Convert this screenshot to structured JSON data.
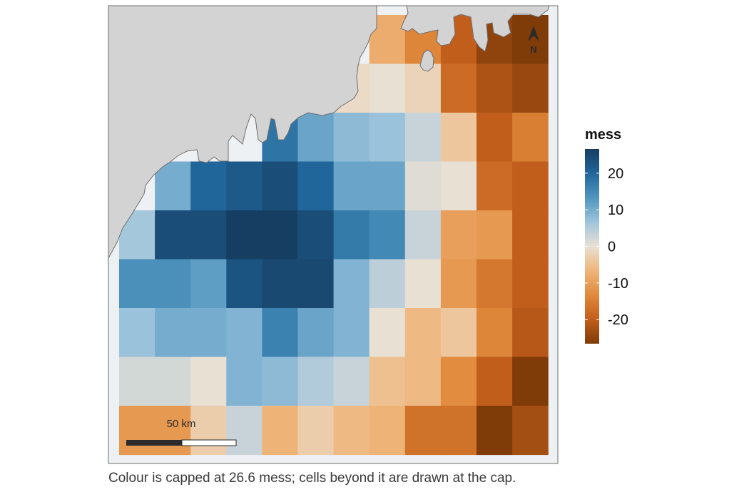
{
  "legend": {
    "title": "mess",
    "ticks": [
      {
        "value": 20,
        "label": "20"
      },
      {
        "value": 10,
        "label": "10"
      },
      {
        "value": 0,
        "label": "0"
      },
      {
        "value": -10,
        "label": "-10"
      },
      {
        "value": -20,
        "label": "-20"
      }
    ],
    "min": -26.6,
    "max": 26.6,
    "colors": [
      "#7f3b08",
      "#c25e1c",
      "#e08a3c",
      "#efb57a",
      "#e9e0d4",
      "#9ec4dc",
      "#4f95bf",
      "#21669a",
      "#163e63"
    ]
  },
  "scale_bar": {
    "label": "50 km"
  },
  "north_arrow": {
    "label": "N"
  },
  "caption": "Colour is capped at 26.6 mess; cells beyond it are drawn at the cap.",
  "grid": {
    "rows": [
      [
        null,
        null,
        null,
        null,
        null,
        null,
        null,
        -8,
        -14,
        -20,
        -25,
        -27
      ],
      [
        null,
        null,
        null,
        null,
        null,
        null,
        -1,
        0,
        -2,
        -18,
        -22,
        -24
      ],
      [
        null,
        null,
        null,
        null,
        18,
        11,
        8,
        7,
        3,
        -4,
        -20,
        -15
      ],
      [
        null,
        10,
        20,
        22,
        24,
        20,
        11,
        11,
        1,
        0,
        -18,
        -20
      ],
      [
        6,
        24,
        24,
        27,
        27,
        24,
        17,
        15,
        3,
        -10,
        -11,
        -20
      ],
      [
        14,
        14,
        12,
        23,
        25,
        25,
        9,
        4,
        0,
        -11,
        -16,
        -20
      ],
      [
        7,
        10,
        10,
        9,
        16,
        11,
        9,
        0,
        -6,
        -4,
        -14,
        -21
      ],
      [
        2,
        2,
        0,
        9,
        8,
        5,
        3,
        -5,
        -6,
        -13,
        -20,
        -27
      ],
      [
        -11,
        -11,
        -3,
        3,
        -7,
        -3,
        -6,
        -7,
        -17,
        -17,
        -27,
        -23
      ]
    ]
  }
}
